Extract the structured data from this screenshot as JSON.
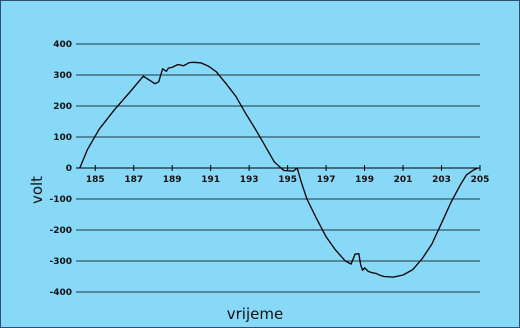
{
  "chart_data": {
    "type": "line",
    "title": "",
    "xlabel": "vrijeme",
    "ylabel": "volt",
    "xlim": [
      184,
      205
    ],
    "ylim": [
      -400,
      400
    ],
    "grid": true,
    "x_ticks": [
      "185",
      "187",
      "189",
      "191",
      "193",
      "195",
      "197",
      "199",
      "201",
      "203",
      "205"
    ],
    "y_ticks": [
      "400",
      "300",
      "200",
      "100",
      "0",
      "-100",
      "-200",
      "-300",
      "-400"
    ],
    "colors": {
      "background": "#88d8f8",
      "line": "#000000",
      "grid": "#000000"
    },
    "series": [
      {
        "name": "",
        "x": [
          184.2,
          184.6,
          185.2,
          186.0,
          186.8,
          187.5,
          188.1,
          188.3,
          188.5,
          188.7,
          188.8,
          189.0,
          189.3,
          189.6,
          189.9,
          190.1,
          190.5,
          190.9,
          191.3,
          191.8,
          192.3,
          192.8,
          193.3,
          193.8,
          194.3,
          194.8,
          195.3,
          195.5,
          195.7,
          196.0,
          196.5,
          197.0,
          197.5,
          198.0,
          198.3,
          198.5,
          198.7,
          198.8,
          198.9,
          199.0,
          199.2,
          199.4,
          199.6,
          199.8,
          200.0,
          200.5,
          201.0,
          201.5,
          202.0,
          202.5,
          203.0,
          203.5,
          204.0,
          204.3,
          204.7,
          204.9
        ],
        "y": [
          0,
          60,
          125,
          188,
          245,
          296,
          272,
          278,
          320,
          312,
          322,
          325,
          334,
          330,
          340,
          341,
          339,
          328,
          310,
          272,
          232,
          178,
          128,
          75,
          20,
          -8,
          -10,
          0,
          -44,
          -100,
          -163,
          -222,
          -265,
          -300,
          -310,
          -278,
          -276,
          -313,
          -330,
          -322,
          -334,
          -338,
          -340,
          -346,
          -350,
          -352,
          -345,
          -328,
          -292,
          -245,
          -178,
          -110,
          -52,
          -22,
          -5,
          0
        ]
      }
    ]
  }
}
